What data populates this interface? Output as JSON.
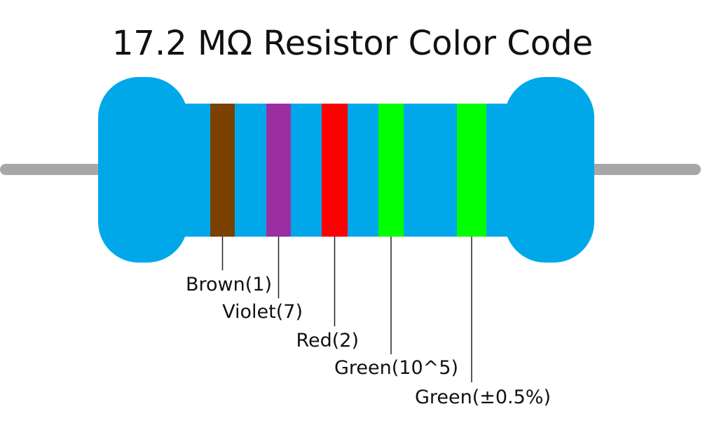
{
  "title": "17.2 MΩ Resistor Color Code",
  "bands": [
    {
      "label": "Brown(1)",
      "color": "#7a4100"
    },
    {
      "label": "Violet(7)",
      "color": "#9b2fa2"
    },
    {
      "label": "Red(2)",
      "color": "#ff0000"
    },
    {
      "label": "Green(10^5)",
      "color": "#00ff00"
    },
    {
      "label": "Green(±0.5%)",
      "color": "#00ff00"
    }
  ]
}
